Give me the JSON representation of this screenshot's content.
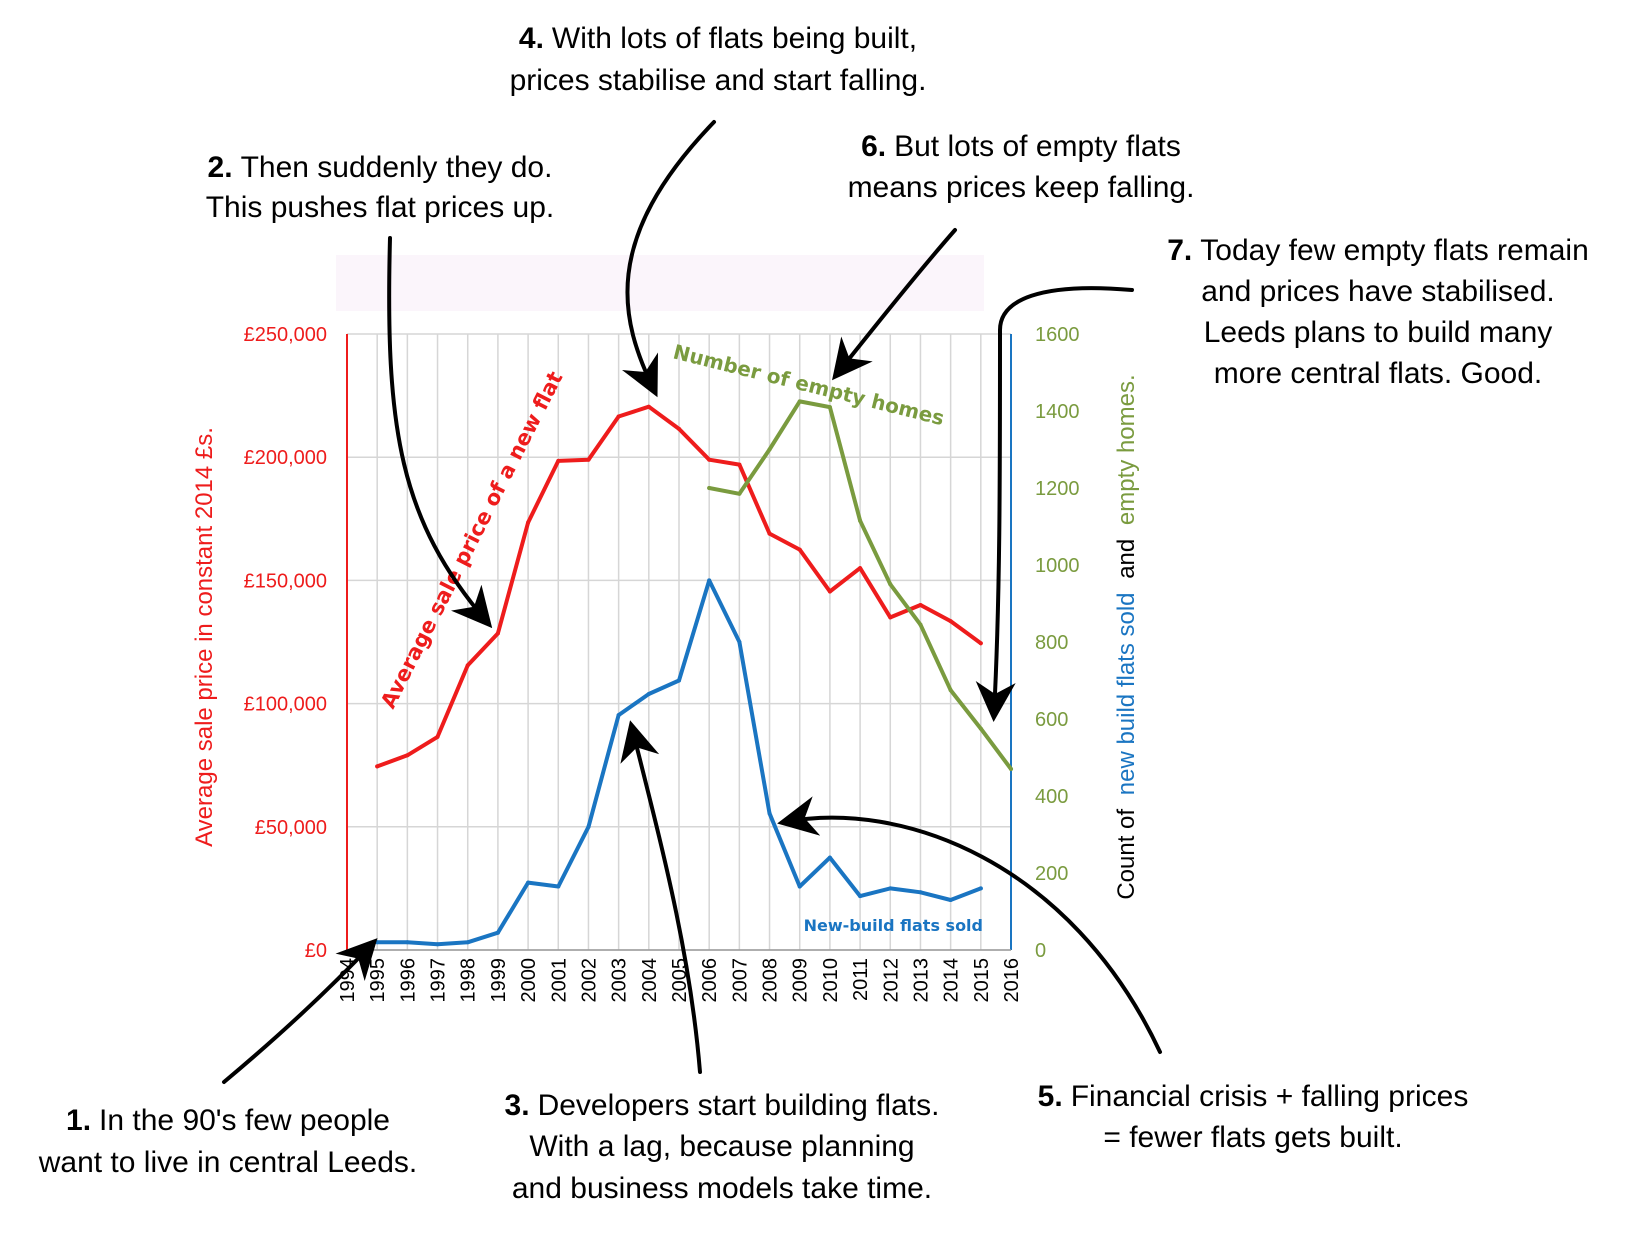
{
  "chart_data": {
    "type": "line",
    "x": [
      1994,
      1995,
      1996,
      1997,
      1998,
      1999,
      2000,
      2001,
      2002,
      2003,
      2004,
      2005,
      2006,
      2007,
      2008,
      2009,
      2010,
      2011,
      2012,
      2013,
      2014,
      2015,
      2016
    ],
    "xlim": [
      1994,
      2016
    ],
    "y_left": {
      "label": "Average sale price in constant 2014 £s.",
      "ylim": [
        0,
        250000
      ],
      "ticks": [
        "£0",
        "£50,000",
        "£100,000",
        "£150,000",
        "£200,000",
        "£250,000"
      ],
      "color": "#ee1c1c"
    },
    "y_right": {
      "label_prefix": "Count of",
      "label_blue": "new build flats sold",
      "label_mid": "and",
      "label_green": "empty homes.",
      "ylim": [
        0,
        1600
      ],
      "ticks": [
        "0",
        "200",
        "400",
        "600",
        "800",
        "1000",
        "1200",
        "1400",
        "1600"
      ],
      "color": "#7a9b3f"
    },
    "grid": true,
    "series": [
      {
        "name": "Average sale price of a new flat",
        "axis": "left",
        "color": "#ee1c1c",
        "points": [
          [
            1995,
            74500
          ],
          [
            1996,
            79000
          ],
          [
            1997,
            86500
          ],
          [
            1998,
            115500
          ],
          [
            1999,
            128500
          ],
          [
            2000,
            173500
          ],
          [
            2001,
            198500
          ],
          [
            2002,
            199000
          ],
          [
            2003,
            216500
          ],
          [
            2004,
            220500
          ],
          [
            2005,
            211500
          ],
          [
            2006,
            199000
          ],
          [
            2007,
            197000
          ],
          [
            2008,
            169000
          ],
          [
            2009,
            162500
          ],
          [
            2010,
            145500
          ],
          [
            2011,
            155000
          ],
          [
            2012,
            135000
          ],
          [
            2013,
            140000
          ],
          [
            2014,
            133500
          ],
          [
            2015,
            124500
          ]
        ]
      },
      {
        "name": "New-build flats sold",
        "axis": "right",
        "color": "#1a75c2",
        "points": [
          [
            1995,
            20
          ],
          [
            1996,
            20
          ],
          [
            1997,
            15
          ],
          [
            1998,
            20
          ],
          [
            1999,
            45
          ],
          [
            2000,
            175
          ],
          [
            2001,
            165
          ],
          [
            2002,
            320
          ],
          [
            2003,
            610
          ],
          [
            2004,
            665
          ],
          [
            2005,
            700
          ],
          [
            2006,
            960
          ],
          [
            2007,
            800
          ],
          [
            2008,
            355
          ],
          [
            2009,
            165
          ],
          [
            2010,
            240
          ],
          [
            2011,
            140
          ],
          [
            2012,
            160
          ],
          [
            2013,
            150
          ],
          [
            2014,
            130
          ],
          [
            2015,
            160
          ]
        ]
      },
      {
        "name": "Number of empty homes",
        "axis": "right",
        "color": "#7a9b3f",
        "points": [
          [
            2006,
            1200
          ],
          [
            2007,
            1185
          ],
          [
            2008,
            1300
          ],
          [
            2009,
            1425
          ],
          [
            2010,
            1410
          ],
          [
            2011,
            1115
          ],
          [
            2012,
            950
          ],
          [
            2013,
            845
          ],
          [
            2014,
            675
          ],
          [
            2015,
            575
          ],
          [
            2016,
            470
          ]
        ]
      }
    ]
  },
  "annotations": [
    {
      "id": "a1",
      "num": "1.",
      "lines": [
        "In the 90's few people",
        "want to live in central Leeds."
      ]
    },
    {
      "id": "a2",
      "num": "2.",
      "lines": [
        "Then suddenly they do.",
        "This pushes flat prices up."
      ]
    },
    {
      "id": "a3",
      "num": "3.",
      "lines": [
        "Developers start building flats.",
        "With a lag, because planning",
        "and business models take time."
      ]
    },
    {
      "id": "a4",
      "num": "4.",
      "lines": [
        "With lots of flats being built,",
        "prices stabilise and start falling."
      ]
    },
    {
      "id": "a5",
      "num": "5.",
      "lines": [
        "Financial crisis + falling prices",
        "= fewer flats gets built."
      ]
    },
    {
      "id": "a6",
      "num": "6.",
      "lines": [
        "But lots of empty flats",
        "means prices keep falling."
      ]
    },
    {
      "id": "a7",
      "num": "7.",
      "lines": [
        "Today few empty flats remain",
        "and prices have stabilised.",
        "Leeds plans to build many",
        "more central flats. Good."
      ]
    }
  ]
}
